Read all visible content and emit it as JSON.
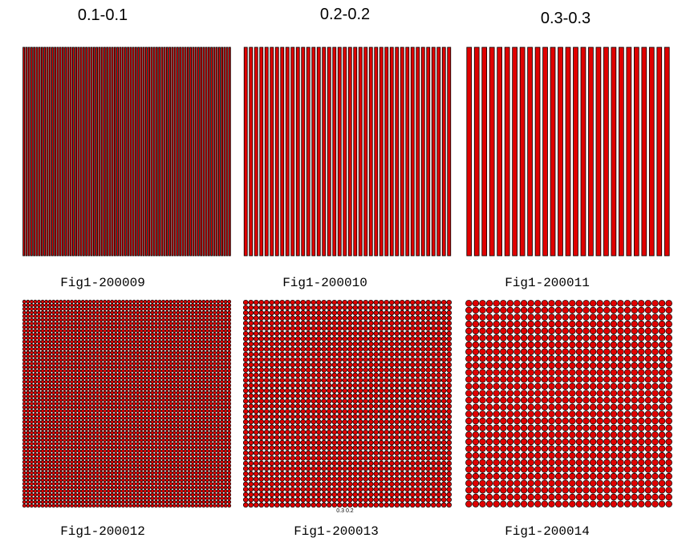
{
  "headers": [
    "0.1-0.1",
    "0.2-0.2",
    "0.3-0.3"
  ],
  "panels": [
    {
      "caption": "Fig1-200009"
    },
    {
      "caption": "Fig1-200010"
    },
    {
      "caption": "Fig1-200011"
    },
    {
      "caption": "Fig1-200012"
    },
    {
      "caption": "Fig1-200013"
    },
    {
      "caption": "Fig1-200014"
    }
  ],
  "note": "0.3 0.2"
}
